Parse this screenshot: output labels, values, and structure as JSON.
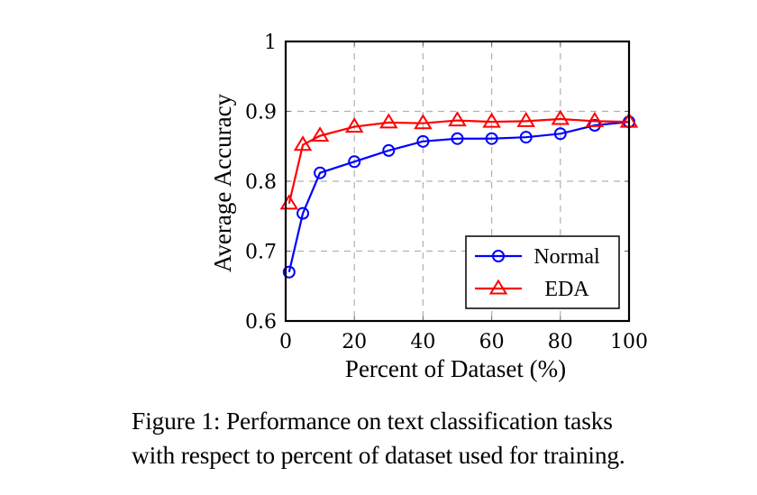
{
  "chart_data": {
    "type": "line",
    "title": "",
    "xlabel": "Percent of Dataset (%)",
    "ylabel": "Average Accuracy",
    "xlim": [
      0,
      100
    ],
    "ylim": [
      0.6,
      1.0
    ],
    "xticks": [
      0,
      20,
      40,
      60,
      80,
      100
    ],
    "xtick_labels": [
      "0",
      "20",
      "40",
      "60",
      "80",
      "100"
    ],
    "yticks": [
      0.6,
      0.7,
      0.8,
      0.9,
      1.0
    ],
    "ytick_labels": [
      "0.6",
      "0.7",
      "0.8",
      "0.9",
      "1"
    ],
    "grid": true,
    "legend_position": "bottom-right",
    "x": [
      1,
      5,
      10,
      20,
      30,
      40,
      50,
      60,
      70,
      80,
      90,
      100
    ],
    "series": [
      {
        "name": "Normal",
        "color": "#0000ff",
        "marker": "circle",
        "values": [
          0.67,
          0.754,
          0.812,
          0.828,
          0.844,
          0.857,
          0.861,
          0.861,
          0.863,
          0.868,
          0.88,
          0.885
        ]
      },
      {
        "name": "EDA",
        "color": "#ff0000",
        "marker": "triangle",
        "values": [
          0.768,
          0.852,
          0.865,
          0.878,
          0.884,
          0.883,
          0.887,
          0.885,
          0.886,
          0.889,
          0.886,
          0.885
        ]
      }
    ]
  },
  "caption": {
    "line1": "Figure 1: Performance on text classification tasks",
    "line2": "with respect to percent of dataset used for training."
  }
}
